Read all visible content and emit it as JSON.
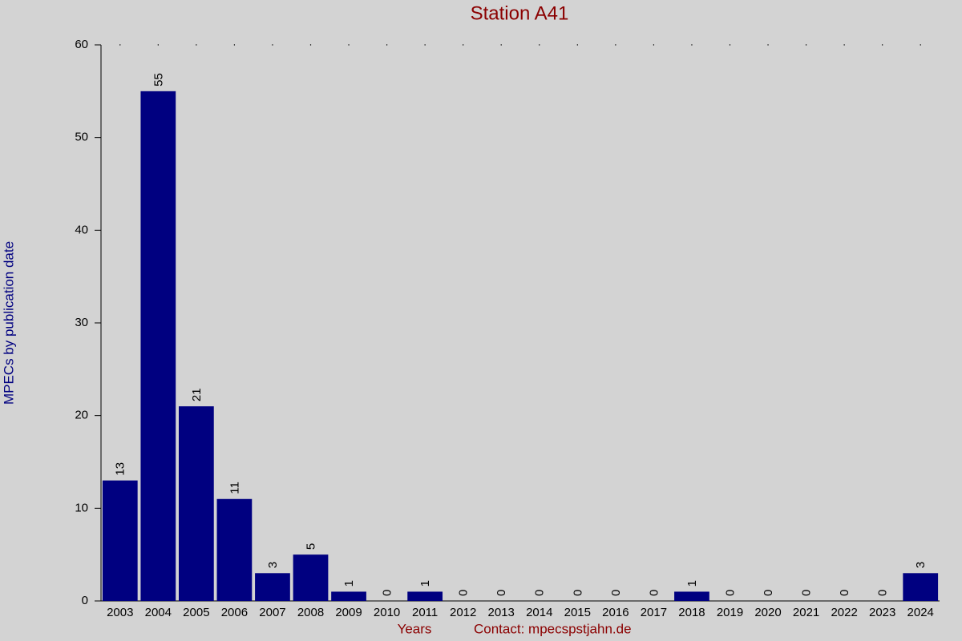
{
  "chart_data": {
    "type": "bar",
    "title": "Station A41",
    "y_label": "MPECs by publication date",
    "x_label": "Years",
    "note": "Contact: mpecspstjahn.de",
    "categories": [
      "2003",
      "2004",
      "2005",
      "2006",
      "2007",
      "2008",
      "2009",
      "2010",
      "2011",
      "2012",
      "2013",
      "2014",
      "2015",
      "2016",
      "2017",
      "2018",
      "2019",
      "2020",
      "2021",
      "2022",
      "2023",
      "2024"
    ],
    "values": [
      13,
      55,
      21,
      11,
      3,
      5,
      1,
      0,
      1,
      0,
      0,
      0,
      0,
      0,
      0,
      1,
      0,
      0,
      0,
      0,
      0,
      3
    ],
    "color": "#000080",
    "ylim": [
      0,
      60
    ],
    "yticks": [
      0,
      10,
      20,
      30,
      40,
      50,
      60
    ]
  }
}
